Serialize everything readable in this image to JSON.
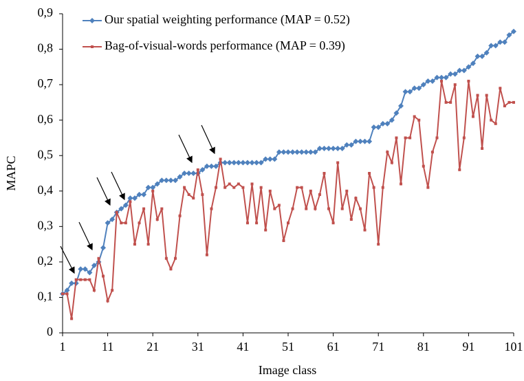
{
  "chart_data": {
    "type": "line",
    "xlabel": "Image class",
    "ylabel": "MAPC",
    "x": [
      1,
      2,
      3,
      4,
      5,
      6,
      7,
      8,
      9,
      10,
      11,
      12,
      13,
      14,
      15,
      16,
      17,
      18,
      19,
      20,
      21,
      22,
      23,
      24,
      25,
      26,
      27,
      28,
      29,
      30,
      31,
      32,
      33,
      34,
      35,
      36,
      37,
      38,
      39,
      40,
      41,
      42,
      43,
      44,
      45,
      46,
      47,
      48,
      49,
      50,
      51,
      52,
      53,
      54,
      55,
      56,
      57,
      58,
      59,
      60,
      61,
      62,
      63,
      64,
      65,
      66,
      67,
      68,
      69,
      70,
      71,
      72,
      73,
      74,
      75,
      76,
      77,
      78,
      79,
      80,
      81,
      82,
      83,
      84,
      85,
      86,
      87,
      88,
      89,
      90,
      91,
      92,
      93,
      94,
      95,
      96,
      97,
      98,
      99,
      100,
      101
    ],
    "series": [
      {
        "name": "Our spatial weighting performance (MAP = 0.52)",
        "color": "#4f81bd",
        "marker": "diamond",
        "values": [
          0.11,
          0.12,
          0.14,
          0.14,
          0.18,
          0.18,
          0.17,
          0.19,
          0.2,
          0.24,
          0.31,
          0.32,
          0.34,
          0.35,
          0.36,
          0.38,
          0.38,
          0.39,
          0.39,
          0.41,
          0.41,
          0.42,
          0.43,
          0.43,
          0.43,
          0.43,
          0.44,
          0.45,
          0.45,
          0.45,
          0.45,
          0.46,
          0.47,
          0.47,
          0.47,
          0.48,
          0.48,
          0.48,
          0.48,
          0.48,
          0.48,
          0.48,
          0.48,
          0.48,
          0.48,
          0.49,
          0.49,
          0.49,
          0.51,
          0.51,
          0.51,
          0.51,
          0.51,
          0.51,
          0.51,
          0.51,
          0.51,
          0.52,
          0.52,
          0.52,
          0.52,
          0.52,
          0.52,
          0.53,
          0.53,
          0.54,
          0.54,
          0.54,
          0.54,
          0.58,
          0.58,
          0.59,
          0.59,
          0.6,
          0.62,
          0.64,
          0.68,
          0.68,
          0.69,
          0.69,
          0.7,
          0.71,
          0.71,
          0.72,
          0.72,
          0.72,
          0.73,
          0.73,
          0.74,
          0.74,
          0.75,
          0.76,
          0.78,
          0.78,
          0.79,
          0.81,
          0.81,
          0.82,
          0.82,
          0.84,
          0.85
        ]
      },
      {
        "name": "Bag-of-visual-words performance (MAP = 0.39)",
        "color": "#c0504d",
        "marker": "square",
        "values": [
          0.11,
          0.11,
          0.04,
          0.15,
          0.15,
          0.15,
          0.15,
          0.12,
          0.21,
          0.16,
          0.09,
          0.12,
          0.34,
          0.31,
          0.31,
          0.37,
          0.25,
          0.31,
          0.35,
          0.25,
          0.4,
          0.32,
          0.35,
          0.21,
          0.18,
          0.21,
          0.33,
          0.41,
          0.39,
          0.38,
          0.46,
          0.39,
          0.22,
          0.35,
          0.41,
          0.49,
          0.41,
          0.42,
          0.41,
          0.42,
          0.41,
          0.31,
          0.42,
          0.31,
          0.41,
          0.29,
          0.4,
          0.35,
          0.36,
          0.26,
          0.31,
          0.35,
          0.41,
          0.41,
          0.35,
          0.4,
          0.35,
          0.39,
          0.45,
          0.35,
          0.31,
          0.48,
          0.35,
          0.4,
          0.32,
          0.38,
          0.35,
          0.29,
          0.45,
          0.41,
          0.25,
          0.41,
          0.51,
          0.48,
          0.55,
          0.42,
          0.55,
          0.55,
          0.61,
          0.6,
          0.47,
          0.41,
          0.51,
          0.55,
          0.71,
          0.65,
          0.65,
          0.7,
          0.46,
          0.55,
          0.71,
          0.61,
          0.67,
          0.52,
          0.67,
          0.6,
          0.59,
          0.69,
          0.64,
          0.65,
          0.65
        ]
      }
    ],
    "xlim": [
      1,
      101
    ],
    "xticks": [
      1,
      11,
      21,
      31,
      41,
      51,
      61,
      71,
      81,
      91,
      101
    ],
    "ylim": [
      0,
      0.9
    ],
    "yticks": [
      0,
      {
        "value": 0.1,
        "label": "0,1"
      },
      {
        "value": 0.2,
        "label": "0,2"
      },
      {
        "value": 0.3,
        "label": "0,3"
      },
      {
        "value": 0.4,
        "label": "0,4"
      },
      {
        "value": 0.5,
        "label": "0,5"
      },
      {
        "value": 0.6,
        "label": "0,6"
      },
      {
        "value": 0.7,
        "label": "0,7"
      },
      {
        "value": 0.8,
        "label": "0,8"
      },
      {
        "value": 0.9,
        "label": "0,9"
      }
    ],
    "grid": false,
    "legend": "top-left"
  }
}
